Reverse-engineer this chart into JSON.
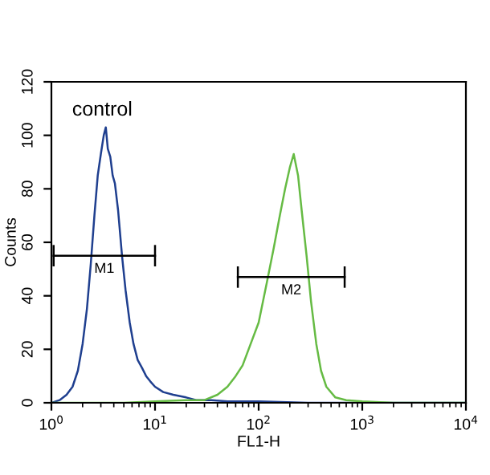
{
  "chart_data": {
    "type": "line",
    "xlabel": "FL1-H",
    "ylabel": "Counts",
    "log": "x",
    "grid": false,
    "legend": false,
    "marker": "none",
    "line_style": "solid",
    "xlim": [
      1,
      10000
    ],
    "ylim": [
      0,
      120
    ],
    "xticks": [
      {
        "value": 1,
        "label": "10$^{0}$"
      },
      {
        "value": 10,
        "label": "10$^{1}$"
      },
      {
        "value": 100,
        "label": "10$^{2}$"
      },
      {
        "value": 1000,
        "label": "10$^{3}$"
      },
      {
        "value": 10000,
        "label": "10$^{4}$"
      }
    ],
    "yticks": [
      0,
      20,
      40,
      60,
      80,
      100,
      120
    ],
    "annotations": [
      "control",
      "M1",
      "M2"
    ],
    "series": [
      {
        "color": "#1f3f8f",
        "x": [
          1.0,
          1.2,
          1.4,
          1.6,
          1.8,
          2.0,
          2.2,
          2.4,
          2.6,
          2.8,
          3.0,
          3.2,
          3.35,
          3.5,
          3.7,
          3.9,
          4.1,
          4.4,
          4.8,
          5.2,
          5.7,
          6.2,
          6.8,
          7.5,
          8.2,
          9,
          10,
          12,
          15,
          20,
          25,
          35,
          50,
          100,
          300,
          1000,
          10000
        ],
        "values": [
          0,
          1,
          3,
          6,
          12,
          22,
          35,
          52,
          70,
          85,
          93,
          100,
          103,
          95,
          92,
          85,
          82,
          72,
          55,
          42,
          30,
          22,
          16,
          13,
          10,
          8,
          6,
          4,
          3,
          2,
          1,
          1,
          0.5,
          0.5,
          0,
          0,
          0
        ]
      },
      {
        "color": "#66bb44",
        "x": [
          1,
          5,
          10,
          20,
          30,
          40,
          50,
          60,
          70,
          80,
          100,
          120,
          140,
          160,
          180,
          200,
          218,
          240,
          260,
          290,
          320,
          360,
          400,
          450,
          550,
          700,
          1000,
          2000,
          10000
        ],
        "values": [
          0,
          0,
          0.5,
          1,
          1,
          3,
          6,
          10,
          14,
          20,
          30,
          45,
          58,
          70,
          80,
          88,
          93,
          85,
          72,
          55,
          38,
          22,
          12,
          6,
          2,
          1,
          0.5,
          0,
          0
        ]
      },
      {
        "color": "#000000",
        "x": [
          1.05,
          10
        ],
        "values": [
          55,
          55
        ],
        "errors": [
          4,
          4
        ]
      },
      {
        "color": "#000000",
        "x": [
          63,
          676
        ],
        "values": [
          47,
          47
        ],
        "errors": [
          4,
          4
        ]
      }
    ]
  }
}
